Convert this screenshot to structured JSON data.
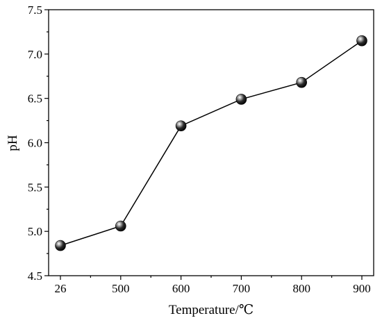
{
  "chart_data": {
    "type": "line",
    "categories": [
      "26",
      "500",
      "600",
      "700",
      "800",
      "900"
    ],
    "series": [
      {
        "values": [
          4.84,
          5.06,
          6.19,
          6.49,
          6.68,
          7.15
        ]
      }
    ],
    "xlabel": "Temperature/℃",
    "ylabel": "pH",
    "ylim": [
      4.5,
      7.5
    ],
    "yticks": [
      4.5,
      5.0,
      5.5,
      6.0,
      6.5,
      7.0,
      7.5
    ],
    "ytick_labels": [
      "4.5",
      "5.0",
      "5.5",
      "6.0",
      "6.5",
      "7.0",
      "7.5"
    ],
    "grid": false,
    "marker": "sphere",
    "colors": {
      "line": "#000000",
      "marker": "#111111"
    }
  }
}
